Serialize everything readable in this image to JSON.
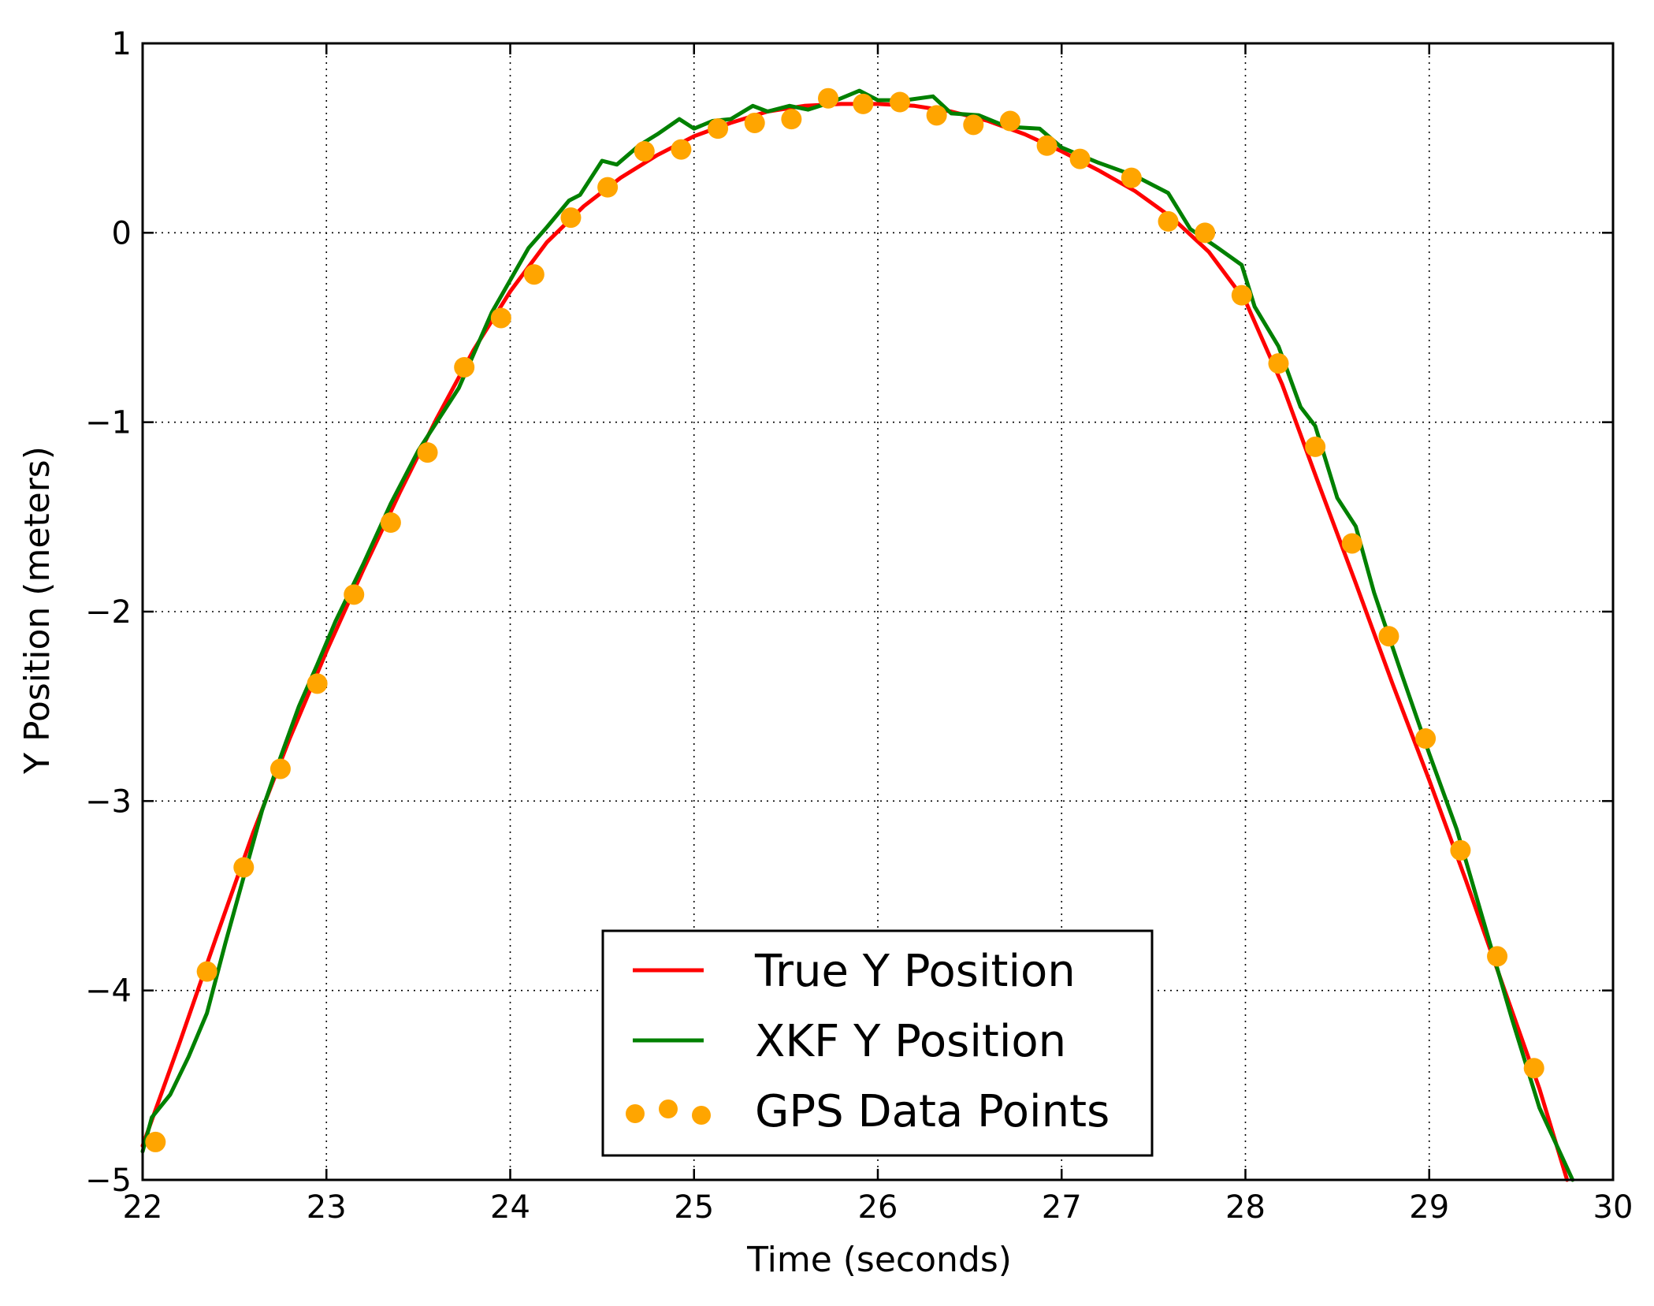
{
  "chart_data": {
    "type": "line",
    "title": "",
    "xlabel": "Time (seconds)",
    "ylabel": "Y Position (meters)",
    "xlim": [
      22,
      30
    ],
    "ylim": [
      -5,
      1
    ],
    "xticks": [
      22,
      23,
      24,
      25,
      26,
      27,
      28,
      29,
      30
    ],
    "xtick_labels": [
      "22",
      "23",
      "24",
      "25",
      "26",
      "27",
      "28",
      "29",
      "30"
    ],
    "yticks": [
      1,
      0,
      -1,
      -2,
      -3,
      -4,
      -5
    ],
    "ytick_labels": [
      "1",
      "0",
      "−1",
      "−2",
      "−3",
      "−4",
      "−5"
    ],
    "grid": true,
    "legend_position": "lower center",
    "series": [
      {
        "name": "True Y Position",
        "kind": "line",
        "color": "#ff0000",
        "x": [
          22.0,
          22.2,
          22.4,
          22.6,
          22.8,
          23.0,
          23.2,
          23.4,
          23.6,
          23.8,
          24.0,
          24.2,
          24.4,
          24.6,
          24.8,
          25.0,
          25.2,
          25.4,
          25.6,
          25.8,
          26.0,
          26.2,
          26.4,
          26.6,
          26.8,
          27.0,
          27.2,
          27.4,
          27.6,
          27.8,
          28.0,
          28.2,
          28.4,
          28.6,
          28.8,
          29.0,
          29.2,
          29.4,
          29.6,
          29.75
        ],
        "y": [
          -4.82,
          -4.28,
          -3.72,
          -3.17,
          -2.67,
          -2.21,
          -1.78,
          -1.37,
          -0.98,
          -0.62,
          -0.31,
          -0.05,
          0.14,
          0.29,
          0.41,
          0.51,
          0.58,
          0.64,
          0.67,
          0.68,
          0.68,
          0.67,
          0.64,
          0.59,
          0.52,
          0.43,
          0.33,
          0.22,
          0.08,
          -0.1,
          -0.36,
          -0.8,
          -1.33,
          -1.85,
          -2.38,
          -2.89,
          -3.42,
          -3.97,
          -4.52,
          -5.0
        ]
      },
      {
        "name": "XKF Y Position",
        "kind": "line",
        "color": "#008000",
        "x": [
          22.0,
          22.05,
          22.15,
          22.25,
          22.35,
          22.45,
          22.55,
          22.65,
          22.75,
          22.85,
          22.95,
          23.05,
          23.2,
          23.35,
          23.5,
          23.72,
          23.9,
          24.1,
          24.2,
          24.32,
          24.38,
          24.5,
          24.58,
          24.7,
          24.8,
          24.92,
          25.0,
          25.1,
          25.2,
          25.32,
          25.4,
          25.52,
          25.62,
          25.75,
          25.9,
          26.0,
          26.15,
          26.3,
          26.4,
          26.55,
          26.7,
          26.88,
          27.0,
          27.2,
          27.4,
          27.58,
          27.7,
          27.85,
          27.98,
          28.05,
          28.18,
          28.3,
          28.38,
          28.5,
          28.6,
          28.7,
          28.85,
          29.0,
          29.15,
          29.3,
          29.45,
          29.6,
          29.78
        ],
        "y": [
          -4.85,
          -4.67,
          -4.55,
          -4.35,
          -4.12,
          -3.75,
          -3.4,
          -3.05,
          -2.77,
          -2.5,
          -2.28,
          -2.05,
          -1.75,
          -1.43,
          -1.15,
          -0.82,
          -0.42,
          -0.08,
          0.03,
          0.17,
          0.2,
          0.38,
          0.36,
          0.46,
          0.52,
          0.6,
          0.55,
          0.59,
          0.6,
          0.67,
          0.64,
          0.67,
          0.65,
          0.69,
          0.75,
          0.7,
          0.7,
          0.72,
          0.63,
          0.62,
          0.56,
          0.55,
          0.45,
          0.37,
          0.3,
          0.21,
          0.02,
          -0.08,
          -0.17,
          -0.39,
          -0.6,
          -0.92,
          -1.02,
          -1.4,
          -1.55,
          -1.9,
          -2.33,
          -2.75,
          -3.15,
          -3.65,
          -4.15,
          -4.62,
          -5.0
        ]
      },
      {
        "name": "GPS Data Points",
        "kind": "scatter",
        "color": "#ffa500",
        "x": [
          22.07,
          22.35,
          22.55,
          22.75,
          22.95,
          23.15,
          23.35,
          23.55,
          23.75,
          23.95,
          24.13,
          24.33,
          24.53,
          24.73,
          24.93,
          25.13,
          25.33,
          25.53,
          25.73,
          25.92,
          26.12,
          26.32,
          26.52,
          26.72,
          26.92,
          27.1,
          27.38,
          27.58,
          27.78,
          27.98,
          28.18,
          28.38,
          28.58,
          28.78,
          28.98,
          29.17,
          29.37,
          29.57
        ],
        "y": [
          -4.8,
          -3.9,
          -3.35,
          -2.83,
          -2.38,
          -1.91,
          -1.53,
          -1.16,
          -0.71,
          -0.45,
          -0.22,
          0.08,
          0.24,
          0.43,
          0.44,
          0.55,
          0.58,
          0.6,
          0.71,
          0.68,
          0.69,
          0.62,
          0.57,
          0.59,
          0.46,
          0.39,
          0.29,
          0.06,
          0.0,
          -0.33,
          -0.69,
          -1.13,
          -1.64,
          -2.13,
          -2.67,
          -3.26,
          -3.82,
          -4.41
        ]
      }
    ]
  }
}
